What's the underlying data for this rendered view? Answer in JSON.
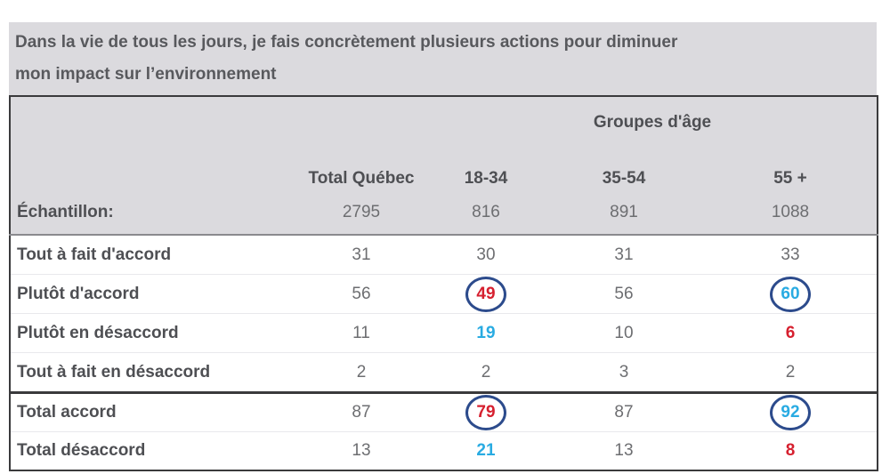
{
  "colors": {
    "band_bg": "#DBDADE",
    "title_text": "#58595D",
    "label_text": "#4E4F53",
    "value_text": "#6D6E71",
    "highlight_red": "#D6202F",
    "highlight_blue": "#29ABE2",
    "circle_stroke": "#2C4B8C",
    "outer_border": "#3A3A3C",
    "header_rule": "#8A8A8E",
    "row_rule": "#E9E9EC"
  },
  "title": {
    "line1": "Dans la vie de tous les jours, je fais concrètement plusieurs actions pour diminuer",
    "line2": "mon impact sur l’environnement"
  },
  "table": {
    "group_header": "Groupes d'âge",
    "sample_label": "Échantillon:",
    "columns": [
      {
        "label": "Total Québec",
        "sample": "2795"
      },
      {
        "label": "18-34",
        "sample": "816"
      },
      {
        "label": "35-54",
        "sample": "891"
      },
      {
        "label": "55 +",
        "sample": "1088"
      }
    ],
    "rows": [
      {
        "label": "Tout à fait d'accord",
        "values": [
          {
            "text": "31"
          },
          {
            "text": "30"
          },
          {
            "text": "31"
          },
          {
            "text": "33"
          }
        ]
      },
      {
        "label": "Plutôt d'accord",
        "values": [
          {
            "text": "56"
          },
          {
            "text": "49",
            "color": "red",
            "circled": true
          },
          {
            "text": "56"
          },
          {
            "text": "60",
            "color": "blue",
            "circled": true
          }
        ]
      },
      {
        "label": "Plutôt en désaccord",
        "values": [
          {
            "text": "11"
          },
          {
            "text": "19",
            "color": "blue"
          },
          {
            "text": "10"
          },
          {
            "text": "6",
            "color": "red"
          }
        ]
      },
      {
        "label": "Tout à fait en désaccord",
        "values": [
          {
            "text": "2"
          },
          {
            "text": "2"
          },
          {
            "text": "3"
          },
          {
            "text": "2"
          }
        ]
      }
    ],
    "total_rows": [
      {
        "label": "Total accord",
        "values": [
          {
            "text": "87"
          },
          {
            "text": "79",
            "color": "red",
            "circled": true
          },
          {
            "text": "87"
          },
          {
            "text": "92",
            "color": "blue",
            "circled": true
          }
        ]
      },
      {
        "label": "Total désaccord",
        "values": [
          {
            "text": "13"
          },
          {
            "text": "21",
            "color": "blue"
          },
          {
            "text": "13"
          },
          {
            "text": "8",
            "color": "red"
          }
        ]
      }
    ]
  },
  "chart_data": {
    "type": "table",
    "title": "Dans la vie de tous les jours, je fais concrètement plusieurs actions pour diminuer mon impact sur l’environnement",
    "group_header": "Groupes d'âge",
    "columns": [
      "Total Québec",
      "18-34",
      "35-54",
      "55 +"
    ],
    "sample_sizes": [
      2795,
      816,
      891,
      1088
    ],
    "rows": [
      {
        "label": "Tout à fait d'accord",
        "values": [
          31,
          30,
          31,
          33
        ]
      },
      {
        "label": "Plutôt d'accord",
        "values": [
          56,
          49,
          56,
          60
        ]
      },
      {
        "label": "Plutôt en désaccord",
        "values": [
          11,
          19,
          10,
          6
        ]
      },
      {
        "label": "Tout à fait en désaccord",
        "values": [
          2,
          2,
          3,
          2
        ]
      },
      {
        "label": "Total accord",
        "values": [
          87,
          79,
          87,
          92
        ]
      },
      {
        "label": "Total désaccord",
        "values": [
          13,
          21,
          13,
          8
        ]
      }
    ],
    "circled_cells": [
      {
        "row": "Plutôt d'accord",
        "column": "18-34",
        "value": 49
      },
      {
        "row": "Plutôt d'accord",
        "column": "55 +",
        "value": 60
      },
      {
        "row": "Total accord",
        "column": "18-34",
        "value": 79
      },
      {
        "row": "Total accord",
        "column": "55 +",
        "value": 92
      }
    ]
  }
}
